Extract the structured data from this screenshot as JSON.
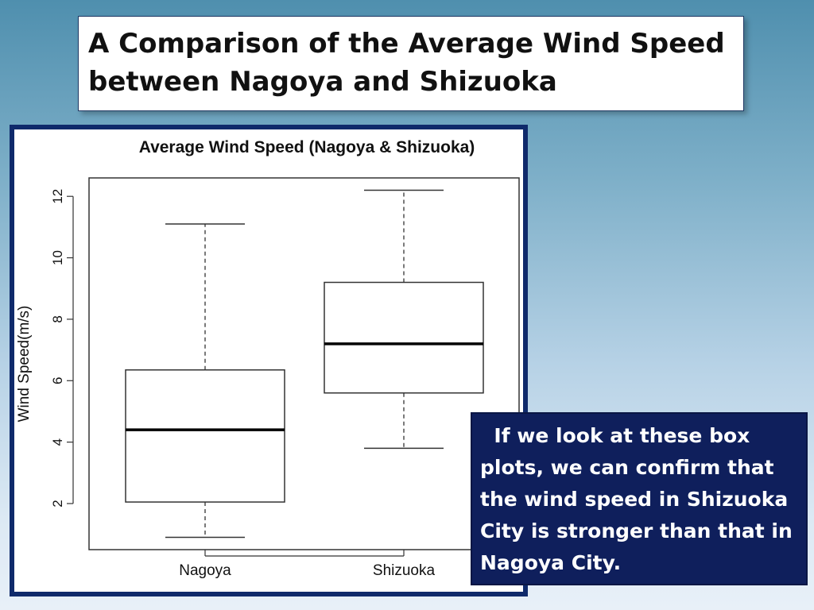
{
  "slide": {
    "title": "A Comparison of the Average Wind Speed between Nagoya and Shizuoka",
    "callout_text": "  If we look at these box plots, we can confirm that the wind speed in Shizuoka City is stronger than that in Nagoya City."
  },
  "colors": {
    "title_border": "#1f3864",
    "chart_frame": "#0f2a6b",
    "callout_bg": "#0f1f5c",
    "callout_text": "#ffffff"
  },
  "chart_data": {
    "type": "boxplot",
    "title": "Average Wind Speed (Nagoya & Shizuoka)",
    "xlabel": "",
    "ylabel": "Wind Speed(m/s)",
    "ylim": [
      0.5,
      12.6
    ],
    "yticks": [
      2,
      4,
      6,
      8,
      10,
      12
    ],
    "categories": [
      "Nagoya",
      "Shizuoka"
    ],
    "boxes": [
      {
        "name": "Nagoya",
        "min": 0.9,
        "q1": 2.05,
        "median": 4.4,
        "q3": 6.35,
        "max": 11.1
      },
      {
        "name": "Shizuoka",
        "min": 3.8,
        "q1": 5.6,
        "median": 7.2,
        "q3": 9.2,
        "max": 12.2
      }
    ],
    "grid": false
  }
}
